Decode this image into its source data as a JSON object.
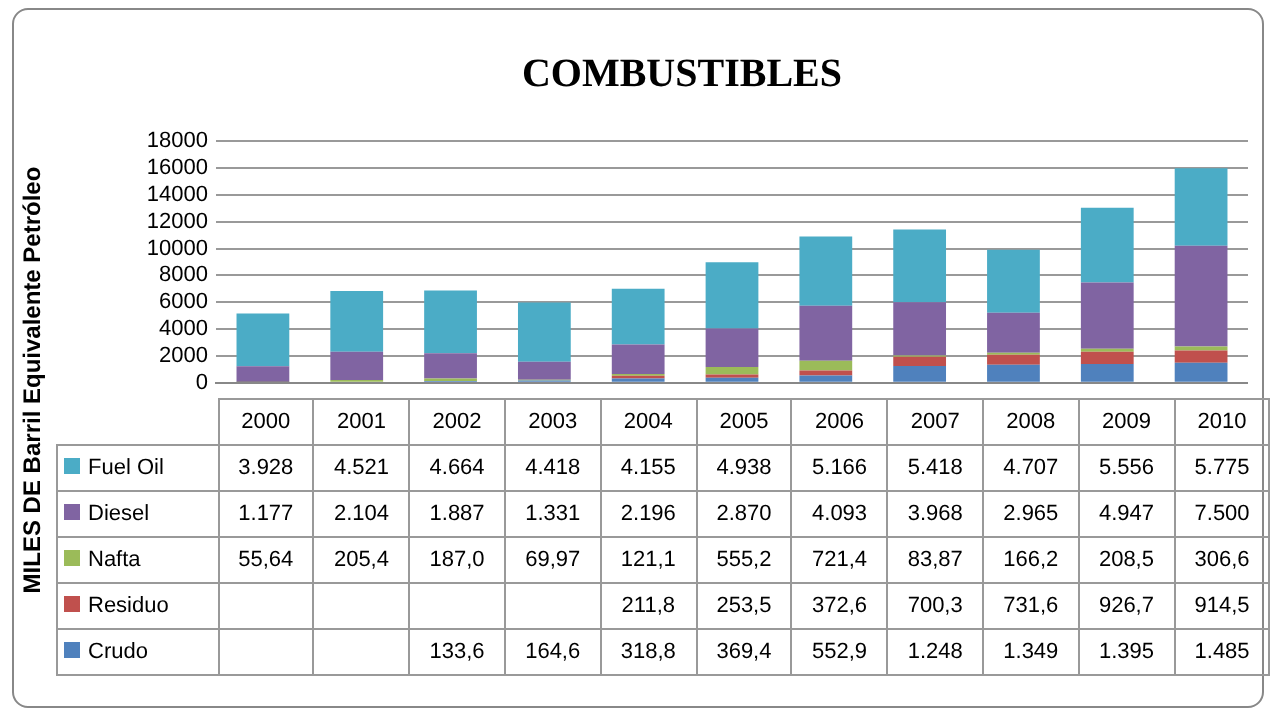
{
  "chart_data": {
    "type": "bar",
    "title": "COMBUSTIBLES",
    "ylabel": "MILES DE Barril Equivalente Petróleo",
    "categories": [
      "2000",
      "2001",
      "2002",
      "2003",
      "2004",
      "2005",
      "2006",
      "2007",
      "2008",
      "2009",
      "2010"
    ],
    "stacked": true,
    "ylim": [
      0,
      18000
    ],
    "yticks": [
      0,
      2000,
      4000,
      6000,
      8000,
      10000,
      12000,
      14000,
      16000,
      18000
    ],
    "grid": "y",
    "legend": "bottom",
    "series": [
      {
        "name": "Crudo",
        "color": "#4f81bd",
        "values": [
          null,
          null,
          133.6,
          164.6,
          318.8,
          369.4,
          552.9,
          1248,
          1349,
          1395,
          1485
        ],
        "value_labels": [
          null,
          null,
          "133,6",
          "164,6",
          "318,8",
          "369,4",
          "552,9",
          "1.248",
          "1.349",
          "1.395",
          "1.485"
        ]
      },
      {
        "name": "Residuo",
        "color": "#c0504d",
        "values": [
          null,
          null,
          null,
          null,
          211.8,
          253.5,
          372.6,
          700.3,
          731.6,
          926.7,
          914.5
        ],
        "value_labels": [
          null,
          null,
          null,
          null,
          "211,8",
          "253,5",
          "372,6",
          "700,3",
          "731,6",
          "926,7",
          "914,5"
        ]
      },
      {
        "name": "Nafta",
        "color": "#9bbb59",
        "values": [
          55.64,
          205.4,
          187.0,
          69.97,
          121.1,
          555.2,
          721.4,
          83.87,
          166.2,
          208.5,
          306.6
        ],
        "value_labels": [
          "55,64",
          "205,4",
          "187,0",
          "69,97",
          "121,1",
          "555,2",
          "721,4",
          "83,87",
          "166,2",
          "208,5",
          "306,6"
        ]
      },
      {
        "name": "Diesel",
        "color": "#8064a2",
        "values": [
          1177,
          2104,
          1887,
          1331,
          2196,
          2870,
          4093,
          3968,
          2965,
          4947,
          7500
        ],
        "value_labels": [
          "1.177",
          "2.104",
          "1.887",
          "1.331",
          "2.196",
          "2.870",
          "4.093",
          "3.968",
          "2.965",
          "4.947",
          "7.500"
        ]
      },
      {
        "name": "Fuel Oil",
        "color": "#4bacc6",
        "values": [
          3928,
          4521,
          4664,
          4418,
          4155,
          4938,
          5166,
          5418,
          4707,
          5556,
          5775
        ],
        "value_labels": [
          "3.928",
          "4.521",
          "4.664",
          "4.418",
          "4.155",
          "4.938",
          "5.166",
          "5.418",
          "4.707",
          "5.556",
          "5.775"
        ]
      }
    ]
  }
}
